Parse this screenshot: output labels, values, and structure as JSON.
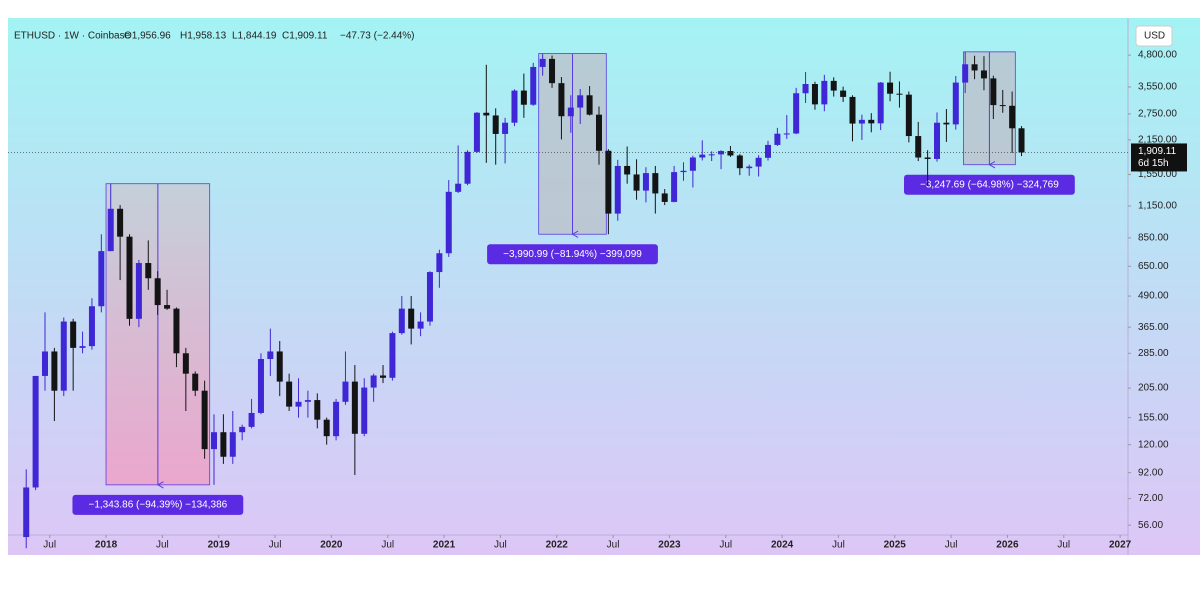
{
  "header": {
    "symbol": "ETHUSD · 1W · Coinbase",
    "open": "O1,956.96",
    "high": "H1,958.13",
    "low": "L1,844.19",
    "close": "C1,909.11",
    "change": "−47.73 (−2.44%)"
  },
  "chart_data": {
    "type": "candlestick",
    "currency": "USD",
    "log_scale": true,
    "up_color": "#3f27d6",
    "down_color": "#141414",
    "x": [
      "2017-04",
      "2017-05",
      "2017-06",
      "2017-07",
      "2017-08",
      "2017-09",
      "2017-10",
      "2017-11",
      "2017-12",
      "2018-01",
      "2018-02",
      "2018-03",
      "2018-04",
      "2018-05",
      "2018-06",
      "2018-07",
      "2018-08",
      "2018-09",
      "2018-10",
      "2018-11",
      "2018-12",
      "2019-01",
      "2019-02",
      "2019-03",
      "2019-04",
      "2019-05",
      "2019-06",
      "2019-07",
      "2019-08",
      "2019-09",
      "2019-10",
      "2019-11",
      "2019-12",
      "2020-01",
      "2020-02",
      "2020-03",
      "2020-04",
      "2020-05",
      "2020-06",
      "2020-07",
      "2020-08",
      "2020-09",
      "2020-10",
      "2020-11",
      "2020-12",
      "2021-01",
      "2021-02",
      "2021-03",
      "2021-04",
      "2021-05",
      "2021-06",
      "2021-07",
      "2021-08",
      "2021-09",
      "2021-10",
      "2021-11",
      "2021-12",
      "2022-01",
      "2022-02",
      "2022-03",
      "2022-04",
      "2022-05",
      "2022-06",
      "2022-07",
      "2022-08",
      "2022-09",
      "2022-10",
      "2022-11",
      "2022-12",
      "2023-01",
      "2023-02",
      "2023-03",
      "2023-04",
      "2023-05",
      "2023-06",
      "2023-07",
      "2023-08",
      "2023-09",
      "2023-10",
      "2023-11",
      "2023-12",
      "2024-01",
      "2024-02",
      "2024-03",
      "2024-04",
      "2024-05",
      "2024-06",
      "2024-07",
      "2024-08",
      "2024-09",
      "2024-10",
      "2024-11",
      "2024-12",
      "2025-01",
      "2025-02",
      "2025-03",
      "2025-04",
      "2025-05",
      "2025-06",
      "2025-07",
      "2025-08",
      "2025-09",
      "2025-10",
      "2025-11",
      "2025-12",
      "2026-01",
      "2026-02"
    ],
    "open": [
      50,
      80,
      230,
      290,
      200,
      385,
      300,
      305,
      445,
      750,
      1120,
      860,
      395,
      670,
      580,
      450,
      435,
      285,
      235,
      200,
      115,
      135,
      107,
      135,
      142,
      162,
      270,
      290,
      218,
      172,
      180,
      183,
      152,
      130,
      180,
      218,
      133,
      206,
      231,
      226,
      345,
      435,
      360,
      385,
      615,
      735,
      1315,
      1420,
      1920,
      2780,
      2710,
      2275,
      2530,
      3430,
      3000,
      4290,
      4630,
      3680,
      2690,
      2920,
      3280,
      2730,
      1940,
      1070,
      1680,
      1550,
      1330,
      1570,
      1295,
      1195,
      1585,
      1605,
      1820,
      1870,
      1875,
      1935,
      1855,
      1645,
      1670,
      1815,
      2050,
      2280,
      2285,
      3345,
      3650,
      3010,
      3760,
      3430,
      3230,
      2510,
      2600,
      2515,
      3700,
      3330,
      3300,
      2230,
      1820,
      1795,
      2530,
      2490,
      3700,
      4400,
      4150,
      3850,
      2990,
      2970,
      2400
    ],
    "high": [
      95,
      230,
      420,
      300,
      400,
      395,
      350,
      480,
      880,
      1420,
      1160,
      880,
      690,
      830,
      620,
      520,
      440,
      300,
      240,
      220,
      160,
      160,
      165,
      145,
      185,
      285,
      360,
      320,
      235,
      225,
      200,
      195,
      155,
      185,
      290,
      255,
      225,
      235,
      255,
      350,
      490,
      490,
      420,
      620,
      760,
      1470,
      2040,
      1950,
      2800,
      4380,
      2900,
      2650,
      3470,
      4030,
      4460,
      4870,
      4780,
      3900,
      3280,
      3480,
      3580,
      2950,
      1970,
      1780,
      2020,
      1790,
      1660,
      1680,
      1350,
      1680,
      1740,
      1850,
      2140,
      1930,
      1950,
      2030,
      1880,
      1700,
      1860,
      2130,
      2410,
      2720,
      3520,
      4090,
      3730,
      3980,
      3890,
      3560,
      3280,
      2730,
      2770,
      3720,
      4100,
      3740,
      3400,
      2550,
      1950,
      2790,
      2880,
      3940,
      4950,
      4770,
      4750,
      3950,
      3450,
      3400,
      2450
    ],
    "low": [
      45,
      78,
      200,
      150,
      190,
      200,
      285,
      295,
      420,
      750,
      570,
      370,
      365,
      520,
      410,
      430,
      250,
      165,
      190,
      105,
      82,
      100,
      100,
      125,
      140,
      160,
      230,
      190,
      165,
      155,
      155,
      140,
      120,
      125,
      175,
      90,
      130,
      180,
      215,
      220,
      340,
      310,
      335,
      370,
      530,
      710,
      1300,
      1400,
      1900,
      1730,
      1700,
      1720,
      2450,
      2650,
      2970,
      3950,
      3520,
      2160,
      2300,
      2500,
      2710,
      1700,
      880,
      1000,
      1420,
      1220,
      1190,
      1070,
      1160,
      1190,
      1460,
      1370,
      1770,
      1760,
      1630,
      1830,
      1540,
      1530,
      1520,
      1770,
      2030,
      2170,
      2270,
      3050,
      2860,
      2820,
      3240,
      3080,
      2120,
      2150,
      2310,
      2360,
      3100,
      2920,
      2100,
      1760,
      1390,
      1750,
      2110,
      2370,
      3350,
      3820,
      3440,
      2620,
      2780,
      1900,
      1844
    ],
    "close": [
      80,
      230,
      290,
      200,
      385,
      300,
      305,
      445,
      750,
      1120,
      860,
      395,
      670,
      580,
      450,
      435,
      285,
      235,
      200,
      115,
      135,
      107,
      135,
      142,
      162,
      270,
      290,
      218,
      172,
      180,
      183,
      152,
      130,
      180,
      218,
      133,
      206,
      231,
      226,
      345,
      435,
      360,
      385,
      615,
      735,
      1315,
      1420,
      1920,
      2780,
      2710,
      2275,
      2530,
      3430,
      3000,
      4290,
      4630,
      3680,
      2690,
      2920,
      3280,
      2730,
      1940,
      1070,
      1680,
      1550,
      1330,
      1570,
      1295,
      1195,
      1585,
      1605,
      1820,
      1870,
      1875,
      1935,
      1855,
      1645,
      1670,
      1815,
      2050,
      2280,
      2285,
      3345,
      3650,
      3010,
      3760,
      3430,
      3230,
      2510,
      2600,
      2515,
      3700,
      3330,
      3300,
      2230,
      1820,
      1795,
      2530,
      2490,
      3700,
      4400,
      4150,
      3850,
      2990,
      2970,
      2400,
      1909
    ],
    "xlim": [
      2017.13,
      2027.07
    ],
    "xticks": [
      {
        "value": 2017.5,
        "label": "Jul"
      },
      2018,
      {
        "value": 2018.5,
        "label": "Jul"
      },
      2019,
      {
        "value": 2019.5,
        "label": "Jul"
      },
      2020,
      {
        "value": 2020.5,
        "label": "Jul"
      },
      2021,
      {
        "value": 2021.5,
        "label": "Jul"
      },
      2022,
      {
        "value": 2022.5,
        "label": "Jul"
      },
      2023,
      {
        "value": 2023.5,
        "label": "Jul"
      },
      2024,
      {
        "value": 2024.5,
        "label": "Jul"
      },
      2025,
      {
        "value": 2025.5,
        "label": "Jul"
      },
      2026,
      {
        "value": 2026.5,
        "label": "Jul"
      },
      2027
    ],
    "ylim": [
      51,
      6820
    ],
    "yticks": [
      {
        "value": 4800,
        "label": "4,800.00"
      },
      {
        "value": 3550,
        "label": "3,550.00"
      },
      {
        "value": 2750,
        "label": "2,750.00"
      },
      {
        "value": 2150,
        "label": "2,150.00"
      },
      {
        "value": 1550,
        "label": "1,550.00"
      },
      {
        "value": 1150,
        "label": "1,150.00"
      },
      {
        "value": 850,
        "label": "850.00"
      },
      {
        "value": 650,
        "label": "650.00"
      },
      {
        "value": 490,
        "label": "490.00"
      },
      {
        "value": 365,
        "label": "365.00"
      },
      {
        "value": 285,
        "label": "285.00"
      },
      {
        "value": 205,
        "label": "205.00"
      },
      {
        "value": 155,
        "label": "155.00"
      },
      {
        "value": 120,
        "label": "120.00"
      },
      {
        "value": 92,
        "label": "92.00"
      },
      {
        "value": 72,
        "label": "72.00"
      },
      {
        "value": 56,
        "label": "56.00"
      }
    ],
    "last_price": {
      "value": 1909.11,
      "label": "1,909.11"
    },
    "countdown": "6d 15h",
    "measures": [
      {
        "start": 2018.0,
        "end": 2018.92,
        "top": 1420,
        "bottom": 82,
        "label": "−1,343.86 (−94.39%) −134,386"
      },
      {
        "start": 2021.84,
        "end": 2022.44,
        "top": 4870,
        "bottom": 880,
        "label": "−3,990.99 (−81.94%) −399,099"
      },
      {
        "start": 2025.61,
        "end": 2026.07,
        "top": 4950,
        "bottom": 1700,
        "label": "−3,247.69 (−64.98%) −324,769"
      }
    ]
  }
}
